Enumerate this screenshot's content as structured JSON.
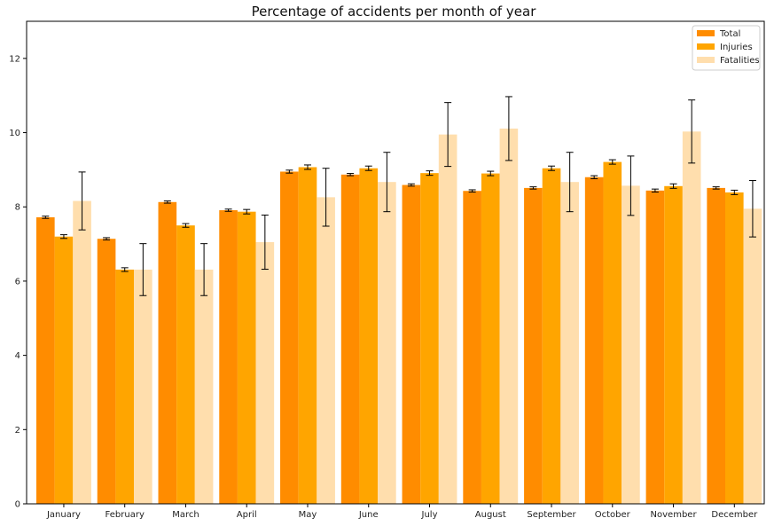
{
  "chart_data": {
    "type": "bar",
    "title": "Percentage of accidents per month of year",
    "xlabel": "",
    "ylabel": "",
    "ylim": [
      0,
      13
    ],
    "yticks": [
      0,
      2,
      4,
      6,
      8,
      10,
      12
    ],
    "grid": false,
    "legend_position": "top-right",
    "categories": [
      "January",
      "February",
      "March",
      "April",
      "May",
      "June",
      "July",
      "August",
      "September",
      "October",
      "November",
      "December"
    ],
    "series": [
      {
        "name": "Total",
        "color": "#ff8c00",
        "values": [
          7.72,
          7.14,
          8.13,
          7.91,
          8.95,
          8.87,
          8.59,
          8.43,
          8.51,
          8.8,
          8.44,
          8.51
        ],
        "errors": [
          0.03,
          0.03,
          0.03,
          0.03,
          0.04,
          0.03,
          0.03,
          0.03,
          0.03,
          0.04,
          0.04,
          0.03
        ]
      },
      {
        "name": "Injuries",
        "color": "#ffa500",
        "values": [
          7.2,
          6.31,
          7.5,
          7.87,
          9.07,
          9.04,
          8.91,
          8.9,
          9.04,
          9.21,
          8.56,
          8.39
        ],
        "errors": [
          0.05,
          0.05,
          0.05,
          0.06,
          0.06,
          0.06,
          0.06,
          0.06,
          0.06,
          0.06,
          0.06,
          0.06
        ]
      },
      {
        "name": "Fatalities",
        "color": "#ffdead",
        "values": [
          8.16,
          6.31,
          6.31,
          7.05,
          8.26,
          8.67,
          9.95,
          10.11,
          8.67,
          8.57,
          10.03,
          7.95
        ],
        "errors": [
          0.78,
          0.7,
          0.7,
          0.73,
          0.78,
          0.8,
          0.86,
          0.86,
          0.8,
          0.8,
          0.85,
          0.76
        ]
      }
    ]
  }
}
